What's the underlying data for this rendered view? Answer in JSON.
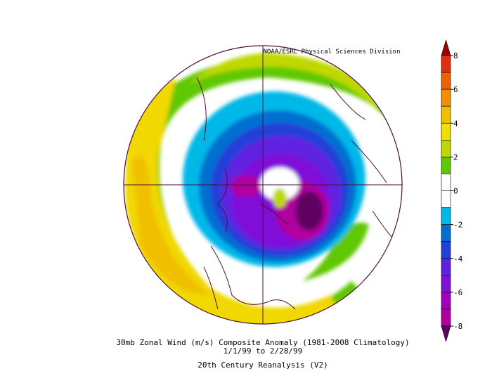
{
  "header": {
    "credit": "NOAA/ESRL Physical Sciences Division"
  },
  "caption": {
    "line1": "30mb Zonal Wind (m/s) Composite Anomaly (1981-2008 Climatology)",
    "line2": "1/1/99  to 2/28/99",
    "line3": "20th Century Reanalysis (V2)"
  },
  "colorbar": {
    "ticks": [
      8,
      6,
      4,
      2,
      0,
      -2,
      -4,
      -6,
      -8
    ],
    "colors": [
      "#a00000",
      "#e03010",
      "#f06000",
      "#f09000",
      "#f0c000",
      "#f0e000",
      "#c0d800",
      "#60c800",
      "#ffffff",
      "#ffffff",
      "#00b8e8",
      "#0070d0",
      "#2040d8",
      "#6020e0",
      "#8010d8",
      "#a000b8",
      "#b000a0",
      "#600060"
    ]
  }
}
